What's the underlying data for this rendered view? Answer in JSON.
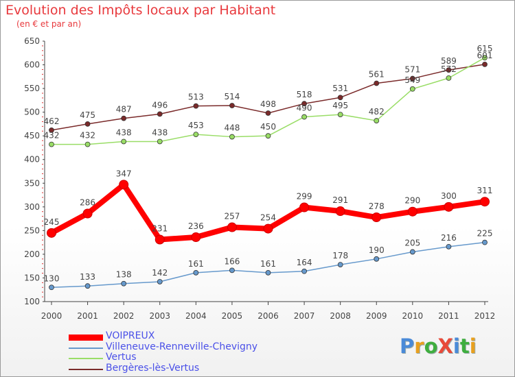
{
  "title": "Evolution des Impôts locaux par Habitant",
  "subtitle": "(en € et par an)",
  "logo": {
    "text": "ProXiti",
    "letters": [
      "P",
      "r",
      "o",
      "X",
      "i",
      "t",
      "i"
    ],
    "colors": [
      "#4a8ad8",
      "#e8a020",
      "#3fae3f",
      "#e84a3a",
      "#4a8ad8",
      "#3fae3f",
      "#e8a020"
    ]
  },
  "chart_data": {
    "type": "line",
    "title": "Evolution des Impôts locaux par Habitant",
    "subtitle": "(en € et par an)",
    "xlabel": "",
    "ylabel": "",
    "categories": [
      "2000",
      "2001",
      "2002",
      "2003",
      "2004",
      "2005",
      "2006",
      "2007",
      "2008",
      "2009",
      "2010",
      "2011",
      "2012"
    ],
    "y_ticks": [
      100,
      150,
      200,
      250,
      300,
      350,
      400,
      450,
      500,
      550,
      600,
      650
    ],
    "ylim": [
      100,
      650
    ],
    "grid": "none",
    "legend_position": "bottom-left",
    "series": [
      {
        "name": "VOIPREUX",
        "color": "#ff0000",
        "values": [
          245,
          286,
          347,
          231,
          236,
          257,
          254,
          299,
          291,
          278,
          290,
          300,
          311
        ]
      },
      {
        "name": "Villeneuve-Renneville-Chevigny",
        "color": "#6699cc",
        "values": [
          130,
          133,
          138,
          142,
          161,
          166,
          161,
          164,
          178,
          190,
          205,
          216,
          225
        ]
      },
      {
        "name": "Vertus",
        "color": "#99dd66",
        "values": [
          432,
          432,
          438,
          438,
          453,
          448,
          450,
          490,
          495,
          482,
          549,
          572,
          615
        ]
      },
      {
        "name": "Bergères-lès-Vertus",
        "color": "#7a2a2a",
        "values": [
          462,
          475,
          487,
          496,
          513,
          514,
          498,
          518,
          531,
          561,
          571,
          589,
          601
        ]
      }
    ]
  }
}
